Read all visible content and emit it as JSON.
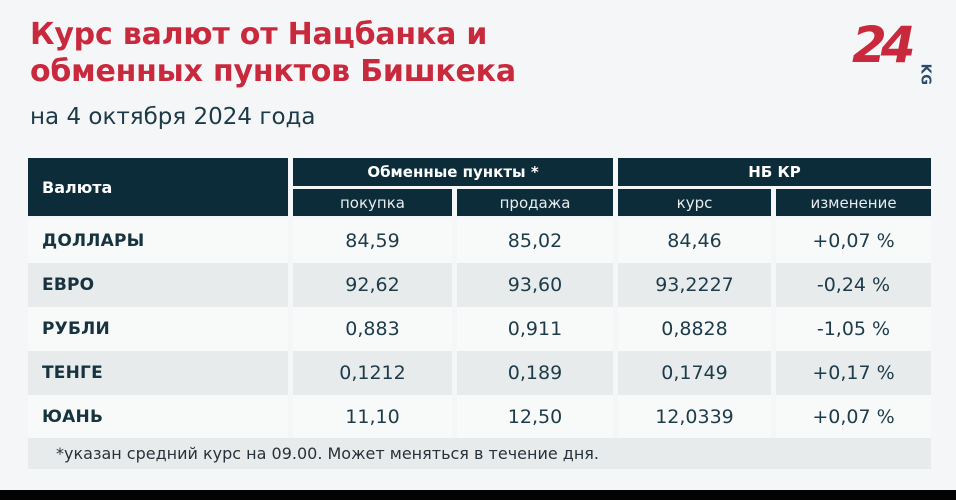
{
  "page": {
    "title_line1": "Курс валют от Нацбанка и",
    "title_line2": "обменных пунктов Бишкека",
    "subtitle": "на 4 октября 2024 года",
    "footnote": "*указан средний курс на 09.00. Может меняться в течение дня."
  },
  "logo": {
    "number": "24",
    "suffix": "KG"
  },
  "colors": {
    "accent_red": "#c9293d",
    "header_dark": "#0d2c39",
    "row_gray": "#e7ebec",
    "row_white": "#f8fafa",
    "text_navy": "#1d3b49",
    "logo_kg_blue": "#2b4a6b",
    "page_bg": "#f5f6f8"
  },
  "table": {
    "col_currency": "Валюта",
    "group_exchange": "Обменные пункты *",
    "group_nbkr": "НБ КР",
    "sub_buy": "покупка",
    "sub_sell": "продажа",
    "sub_rate": "курс",
    "sub_change": "изменение",
    "rows": [
      {
        "currency": "ДОЛЛАРЫ",
        "buy": "84,59",
        "sell": "85,02",
        "rate": "84,46",
        "change": "+0,07 %"
      },
      {
        "currency": "ЕВРО",
        "buy": "92,62",
        "sell": "93,60",
        "rate": "93,2227",
        "change": "-0,24 %"
      },
      {
        "currency": "РУБЛИ",
        "buy": "0,883",
        "sell": "0,911",
        "rate": "0,8828",
        "change": "-1,05 %"
      },
      {
        "currency": "ТЕНГЕ",
        "buy": "0,1212",
        "sell": "0,189",
        "rate": "0,1749",
        "change": "+0,17 %"
      },
      {
        "currency": "ЮАНЬ",
        "buy": "11,10",
        "sell": "12,50",
        "rate": "12,0339",
        "change": "+0,07 %"
      }
    ]
  },
  "chart_data": {
    "type": "table",
    "title": "Курс валют от Нацбанка и обменных пунктов Бишкека",
    "subtitle": "на 4 октября 2024 года",
    "column_groups": [
      "Валюта",
      "Обменные пункты *",
      "НБ КР"
    ],
    "columns": [
      "Валюта",
      "покупка",
      "продажа",
      "курс",
      "изменение"
    ],
    "rows": [
      [
        "ДОЛЛАРЫ",
        "84,59",
        "85,02",
        "84,46",
        "+0,07 %"
      ],
      [
        "ЕВРО",
        "92,62",
        "93,60",
        "93,2227",
        "-0,24 %"
      ],
      [
        "РУБЛИ",
        "0,883",
        "0,911",
        "0,8828",
        "-1,05 %"
      ],
      [
        "ТЕНГЕ",
        "0,1212",
        "0,189",
        "0,1749",
        "+0,17 %"
      ],
      [
        "ЮАНЬ",
        "11,10",
        "12,50",
        "12,0339",
        "+0,07 %"
      ]
    ],
    "footnote": "*указан средний курс на 09.00. Может меняться в течение дня."
  }
}
